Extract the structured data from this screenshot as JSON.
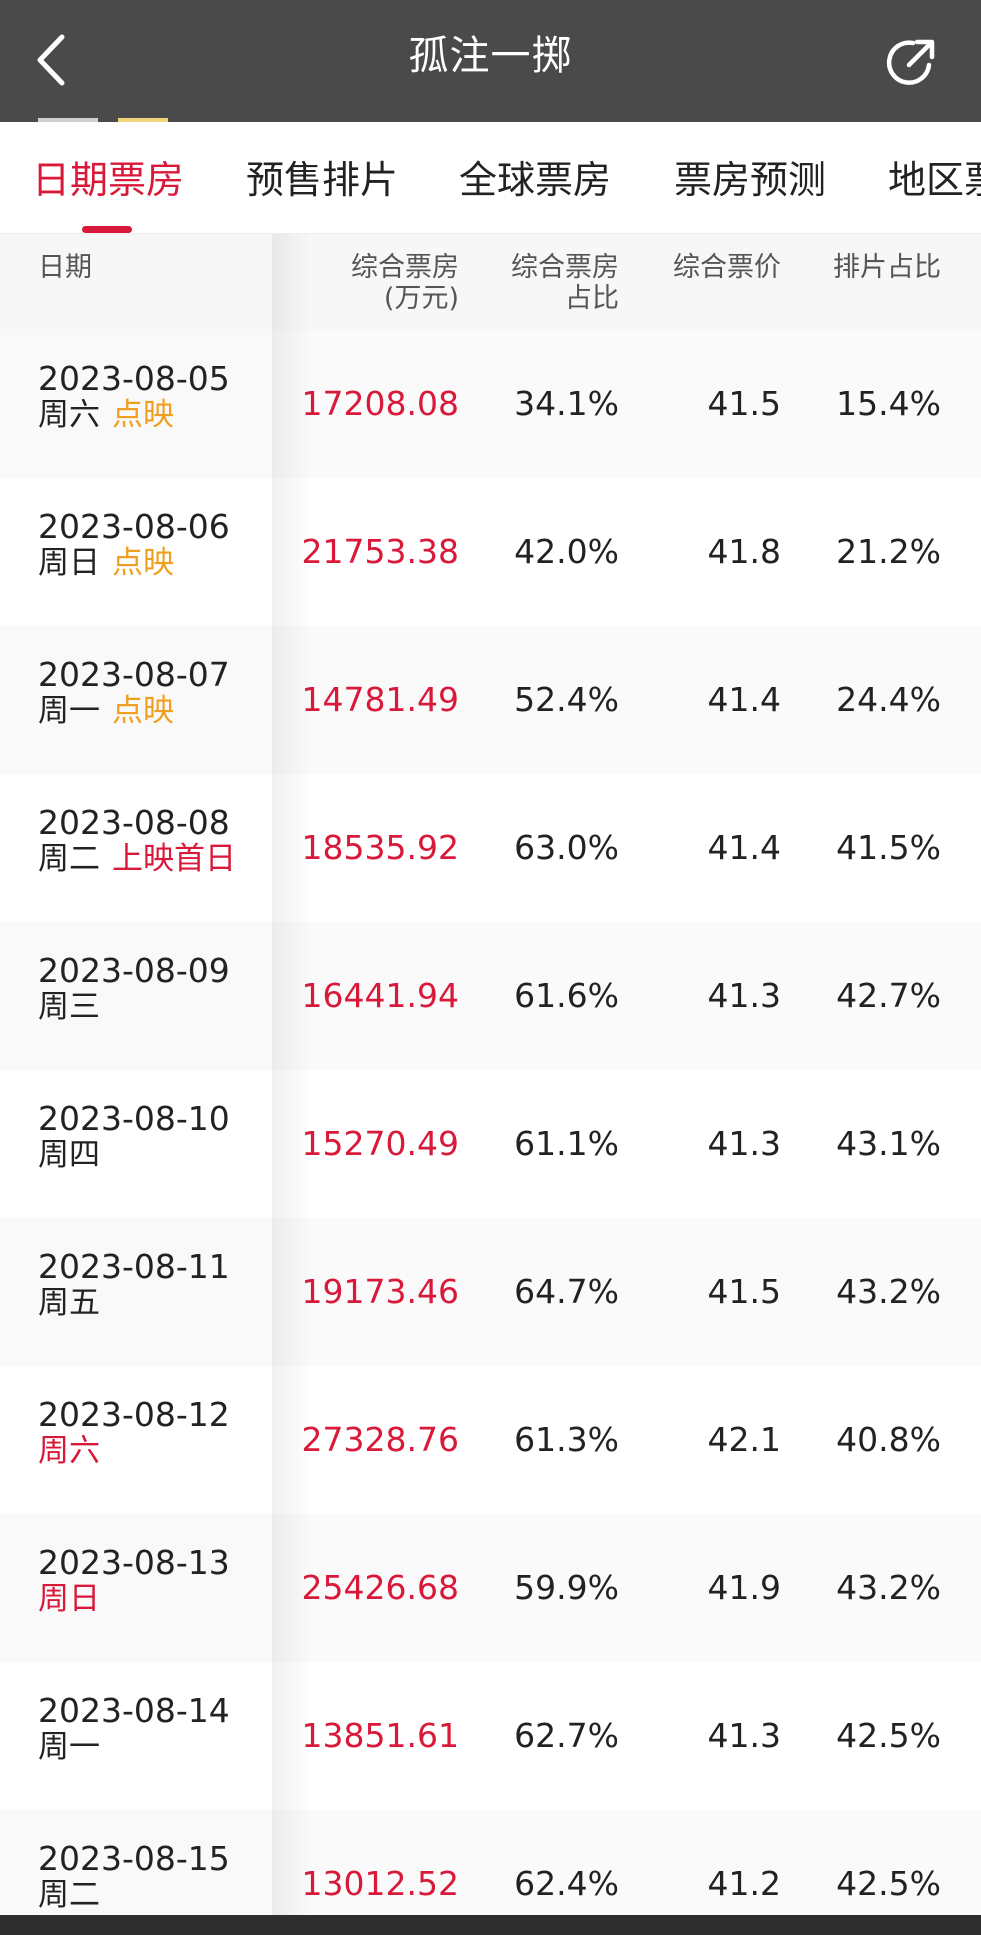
{
  "header": {
    "title": "孤注一掷",
    "back_icon": "chevron-left-icon",
    "share_icon": "share-icon"
  },
  "tabs": [
    {
      "label": "日期票房",
      "active": true
    },
    {
      "label": "预售排片",
      "active": false
    },
    {
      "label": "全球票房",
      "active": false
    },
    {
      "label": "票房预测",
      "active": false
    },
    {
      "label": "地区票",
      "active": false
    }
  ],
  "table": {
    "headers": {
      "date": "日期",
      "box_line1": "综合票房",
      "box_line2": "(万元)",
      "share_line1": "综合票房",
      "share_line2": "占比",
      "price": "综合票价",
      "schedule": "排片占比"
    },
    "rows": [
      {
        "date": "2023-08-05",
        "weekday": "周六",
        "weekday_red": false,
        "tag": "点映",
        "tag_color": "orange",
        "box": "17208.08",
        "share": "34.1%",
        "price": "41.5",
        "schedule": "15.4%"
      },
      {
        "date": "2023-08-06",
        "weekday": "周日",
        "weekday_red": false,
        "tag": "点映",
        "tag_color": "orange",
        "box": "21753.38",
        "share": "42.0%",
        "price": "41.8",
        "schedule": "21.2%"
      },
      {
        "date": "2023-08-07",
        "weekday": "周一",
        "weekday_red": false,
        "tag": "点映",
        "tag_color": "orange",
        "box": "14781.49",
        "share": "52.4%",
        "price": "41.4",
        "schedule": "24.4%"
      },
      {
        "date": "2023-08-08",
        "weekday": "周二",
        "weekday_red": false,
        "tag": "上映首日",
        "tag_color": "red",
        "box": "18535.92",
        "share": "63.0%",
        "price": "41.4",
        "schedule": "41.5%"
      },
      {
        "date": "2023-08-09",
        "weekday": "周三",
        "weekday_red": false,
        "tag": "",
        "tag_color": "",
        "box": "16441.94",
        "share": "61.6%",
        "price": "41.3",
        "schedule": "42.7%"
      },
      {
        "date": "2023-08-10",
        "weekday": "周四",
        "weekday_red": false,
        "tag": "",
        "tag_color": "",
        "box": "15270.49",
        "share": "61.1%",
        "price": "41.3",
        "schedule": "43.1%"
      },
      {
        "date": "2023-08-11",
        "weekday": "周五",
        "weekday_red": false,
        "tag": "",
        "tag_color": "",
        "box": "19173.46",
        "share": "64.7%",
        "price": "41.5",
        "schedule": "43.2%"
      },
      {
        "date": "2023-08-12",
        "weekday": "周六",
        "weekday_red": true,
        "tag": "",
        "tag_color": "",
        "box": "27328.76",
        "share": "61.3%",
        "price": "42.1",
        "schedule": "40.8%"
      },
      {
        "date": "2023-08-13",
        "weekday": "周日",
        "weekday_red": true,
        "tag": "",
        "tag_color": "",
        "box": "25426.68",
        "share": "59.9%",
        "price": "41.9",
        "schedule": "43.2%"
      },
      {
        "date": "2023-08-14",
        "weekday": "周一",
        "weekday_red": false,
        "tag": "",
        "tag_color": "",
        "box": "13851.61",
        "share": "62.7%",
        "price": "41.3",
        "schedule": "42.5%"
      },
      {
        "date": "2023-08-15",
        "weekday": "周二",
        "weekday_red": false,
        "tag": "",
        "tag_color": "",
        "box": "13012.52",
        "share": "62.4%",
        "price": "41.2",
        "schedule": "42.5%"
      }
    ]
  },
  "colors": {
    "accent": "#d8193a",
    "tag_orange": "#f0a020",
    "header_bg": "#4a4a4a"
  }
}
